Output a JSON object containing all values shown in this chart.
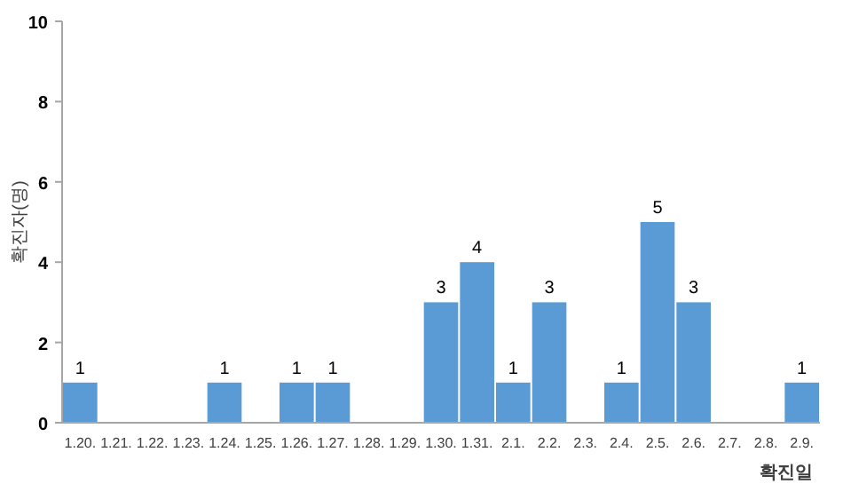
{
  "chart_data": {
    "type": "bar",
    "xlabel": "확진일",
    "ylabel": "확진자(명)",
    "categories": [
      "1.20.",
      "1.21.",
      "1.22.",
      "1.23.",
      "1.24.",
      "1.25.",
      "1.26.",
      "1.27.",
      "1.28.",
      "1.29.",
      "1.30.",
      "1.31.",
      "2.1.",
      "2.2.",
      "2.3.",
      "2.4.",
      "2.5.",
      "2.6.",
      "2.7.",
      "2.8.",
      "2.9."
    ],
    "values": [
      1,
      0,
      0,
      0,
      1,
      0,
      1,
      1,
      0,
      0,
      3,
      4,
      1,
      3,
      0,
      1,
      5,
      3,
      0,
      0,
      1
    ],
    "value_labels": [
      "1",
      null,
      null,
      null,
      "1",
      null,
      "1",
      "1",
      null,
      null,
      "3",
      "4",
      "1",
      "3",
      null,
      "1",
      "5",
      "3",
      null,
      null,
      "1"
    ],
    "color": "#5b9bd5",
    "ylim": [
      0,
      10
    ],
    "yticks": [
      0,
      2,
      4,
      6,
      8,
      10
    ],
    "grid": false
  }
}
